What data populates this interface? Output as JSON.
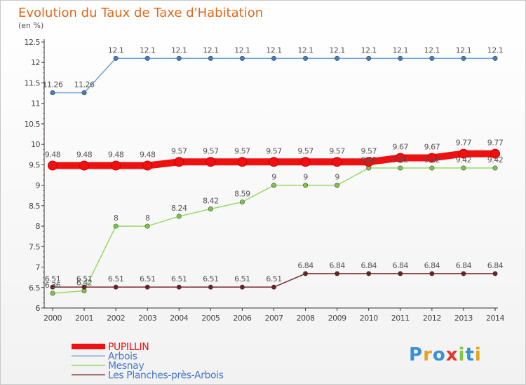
{
  "title": "Evolution du Taux de Taxe d'Habitation",
  "subtitle": "(en %)",
  "logo": "Proxiti",
  "colors": {
    "title": "#e0681c",
    "axis": "#444444",
    "tick_red": "#e4322e"
  },
  "chart_data": {
    "type": "line",
    "categories": [
      "2000",
      "2001",
      "2002",
      "2003",
      "2004",
      "2005",
      "2006",
      "2007",
      "2008",
      "2009",
      "2010",
      "2011",
      "2012",
      "2013",
      "2014"
    ],
    "ylim": [
      6,
      12.5
    ],
    "yticks": [
      "6",
      "6.5",
      "7",
      "7.5",
      "8",
      "8.5",
      "9",
      "9.5",
      "10",
      "10.5",
      "11",
      "11.5",
      "12",
      "12.5"
    ],
    "grid": false,
    "legend_position": "bottom-left",
    "series": [
      {
        "name": "PUPILLIN",
        "color": "#ee1111",
        "emphasis": true,
        "values": [
          9.48,
          9.48,
          9.48,
          9.48,
          9.57,
          9.57,
          9.57,
          9.57,
          9.57,
          9.57,
          9.57,
          9.67,
          9.67,
          9.77,
          9.77
        ],
        "labels": [
          "9.48",
          "9.48",
          "9.48",
          "9.48",
          "9.57",
          "9.57",
          "9.57",
          "9.57",
          "9.57",
          "9.57",
          "9.57",
          "9.67",
          "9.67",
          "9.77",
          "9.77"
        ]
      },
      {
        "name": "Arbois",
        "color": "#6f9fd0",
        "marker": "#3b7fc4",
        "values": [
          11.26,
          11.26,
          12.1,
          12.1,
          12.1,
          12.1,
          12.1,
          12.1,
          12.1,
          12.1,
          12.1,
          12.1,
          12.1,
          12.1,
          12.1
        ],
        "labels": [
          "11.26",
          "11.26",
          "12.1",
          "12.1",
          "12.1",
          "12.1",
          "12.1",
          "12.1",
          "12.1",
          "12.1",
          "12.1",
          "12.1",
          "12.1",
          "12.1",
          "12.1"
        ]
      },
      {
        "name": "Mesnay",
        "color": "#99d866",
        "marker": "#7cc84a",
        "values": [
          6.36,
          6.42,
          8,
          8,
          8.24,
          8.42,
          8.59,
          9,
          9,
          9,
          9.42,
          9.42,
          9.42,
          9.42,
          9.42
        ],
        "labels": [
          "6.36",
          "6.42",
          "8",
          "8",
          "8.24",
          "8.42",
          "8.59",
          "9",
          "9",
          "9",
          "9.42",
          "9.42",
          "9.42",
          "9.42",
          "9.42"
        ]
      },
      {
        "name": "Les Planches-près-Arbois",
        "color": "#7a2e2e",
        "marker": "#6a2222",
        "values": [
          6.51,
          6.51,
          6.51,
          6.51,
          6.51,
          6.51,
          6.51,
          6.51,
          6.84,
          6.84,
          6.84,
          6.84,
          6.84,
          6.84,
          6.84
        ],
        "labels": [
          "6.51",
          "6.51",
          "6.51",
          "6.51",
          "6.51",
          "6.51",
          "6.51",
          "6.51",
          "6.84",
          "6.84",
          "6.84",
          "6.84",
          "6.84",
          "6.84",
          "6.84"
        ]
      }
    ]
  }
}
